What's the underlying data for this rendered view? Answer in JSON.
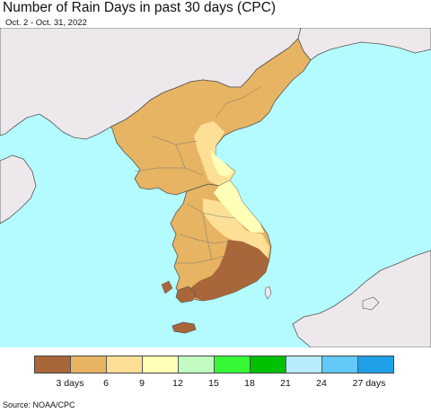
{
  "title": "Number of Rain Days in past 30 days (CPC)",
  "subtitle": "Oct. 2 - Oct. 31, 2022",
  "source": "Source: NOAA/CPC",
  "colors": {
    "ocean": "#b4fbff",
    "land_outside": "#ede8ec",
    "border": "#555555"
  },
  "legend": {
    "colors": [
      "#a9663a",
      "#e6b462",
      "#fde096",
      "#ffffb8",
      "#c3fcc3",
      "#36f736",
      "#00c000",
      "#b8ecfc",
      "#62c8f8",
      "#1e9fe8"
    ],
    "labels": [
      "3 days",
      "6",
      "9",
      "12",
      "15",
      "18",
      "21",
      "24",
      "27 days"
    ]
  }
}
